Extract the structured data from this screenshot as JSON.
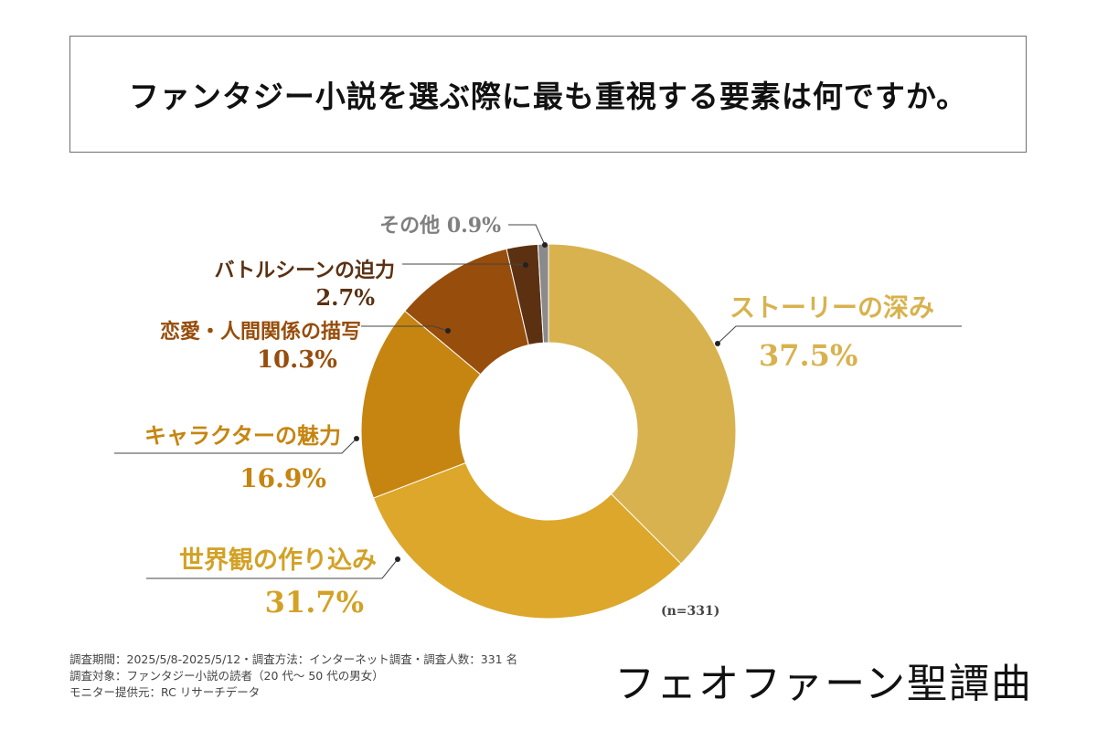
{
  "title": "ファンタジー小説を選ぶ際に最も重視する要素は何ですか。",
  "sample_size": "(n=331)",
  "footer": {
    "line1": "調査期間：2025/5/8-2025/5/12・調査方法：インターネット調査・調査人数：331 名",
    "line2": "調査対象：ファンタジー小説の読者（20 代～ 50 代の男女）",
    "line3": "モニター提供元：RC リサーチデータ"
  },
  "brand": "フェオファーン聖譚曲",
  "chart_data": {
    "type": "pie",
    "style": "donut",
    "unit": "%",
    "slices": [
      {
        "label": "ストーリーの深み",
        "value": 37.5,
        "value_label": "37.5%",
        "color": "#d8b24e"
      },
      {
        "label": "世界観の作り込み",
        "value": 31.7,
        "value_label": "31.7%",
        "color": "#dca72a"
      },
      {
        "label": "キャラクターの魅力",
        "value": 16.9,
        "value_label": "16.9%",
        "color": "#c68510"
      },
      {
        "label": "恋愛・人間関係の描写",
        "value": 10.3,
        "value_label": "10.3%",
        "color": "#974d0b"
      },
      {
        "label": "バトルシーンの迫力",
        "value": 2.7,
        "value_label": "2.7%",
        "color": "#5b3112"
      },
      {
        "label": "その他",
        "value": 0.9,
        "value_label": "0.9%",
        "color": "#8a8a8a"
      }
    ]
  }
}
